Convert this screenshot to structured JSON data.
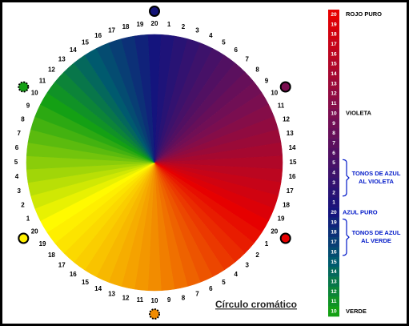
{
  "title": "Círculo cromático",
  "wheel": {
    "labels": [
      20,
      1,
      2,
      3,
      4,
      5,
      6,
      7,
      8,
      9,
      10,
      11,
      12,
      13,
      14,
      15,
      16,
      17,
      18,
      19,
      20,
      1,
      2,
      3,
      4,
      5,
      6,
      7,
      8,
      9,
      10,
      11,
      12,
      13,
      14,
      15,
      16,
      17,
      18,
      19,
      20,
      1,
      2,
      3,
      4,
      5,
      6,
      7,
      8,
      9,
      10,
      11,
      12,
      13,
      14,
      15,
      16,
      17,
      18,
      19
    ]
  },
  "bar": {
    "labels": [
      20,
      19,
      18,
      17,
      16,
      15,
      14,
      13,
      12,
      11,
      10,
      9,
      8,
      7,
      6,
      5,
      4,
      3,
      2,
      1,
      20,
      19,
      18,
      17,
      16,
      15,
      14,
      13,
      12,
      11,
      10
    ]
  },
  "annotations": [
    {
      "lines": [
        "ROJO PURO"
      ]
    },
    {
      "lines": [
        "VIOLETA"
      ]
    },
    {
      "lines": [
        "TONOS DE AZUL",
        "AL VIOLETA"
      ]
    },
    {
      "lines": [
        "AZUL PURO"
      ]
    },
    {
      "lines": [
        "TONOS DE AZUL",
        "AL VERDE"
      ]
    },
    {
      "lines": [
        "VERDE"
      ]
    }
  ]
}
